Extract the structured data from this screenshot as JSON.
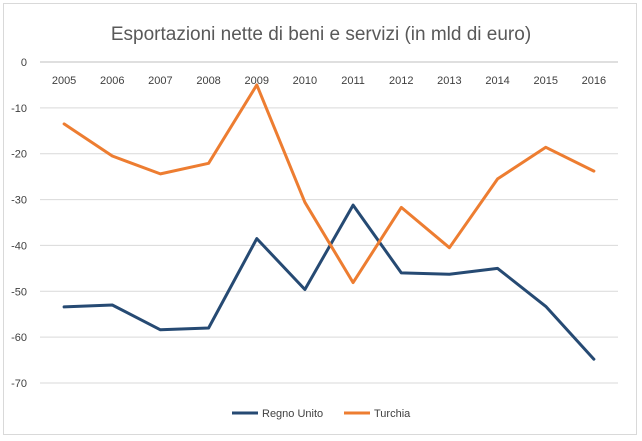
{
  "chart_data": {
    "type": "line",
    "title": "Esportazioni nette di  beni e servizi (in mld di euro)",
    "xlabel": "",
    "ylabel": "",
    "x": [
      "2005",
      "2006",
      "2007",
      "2008",
      "2009",
      "2010",
      "2011",
      "2012",
      "2013",
      "2014",
      "2015",
      "2016"
    ],
    "ylim": [
      -70,
      0
    ],
    "yticks": [
      0,
      -10,
      -20,
      -30,
      -40,
      -50,
      -60,
      -70
    ],
    "grid": true,
    "legend_position": "bottom",
    "series": [
      {
        "name": "Regno Unito",
        "color": "#264a73",
        "values": [
          -53.4,
          -53.0,
          -58.4,
          -58.0,
          -38.5,
          -49.6,
          -31.2,
          -46.0,
          -46.3,
          -45.0,
          -53.3,
          -64.8
        ]
      },
      {
        "name": "Turchia",
        "color": "#ed7d31",
        "values": [
          -13.5,
          -20.5,
          -24.4,
          -22.1,
          -5.0,
          -30.6,
          -48.1,
          -31.7,
          -40.5,
          -25.5,
          -18.6,
          -23.8
        ]
      }
    ]
  }
}
